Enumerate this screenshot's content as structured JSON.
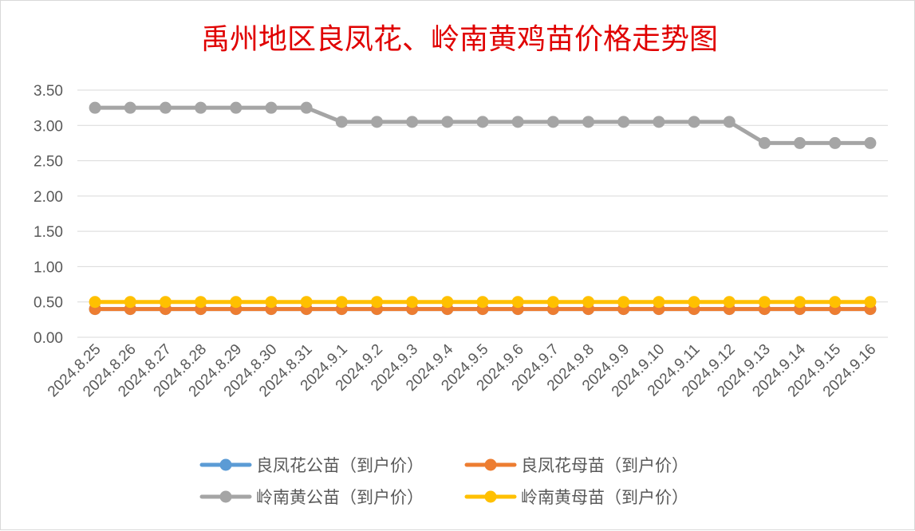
{
  "chart_data": {
    "type": "line",
    "title": "禹州地区良凤花、岭南黄鸡苗价格走势图",
    "xlabel": "",
    "ylabel": "",
    "ylim": [
      0,
      3.5
    ],
    "ytick_step": 0.5,
    "ytick_labels": [
      "0.00",
      "0.50",
      "1.00",
      "1.50",
      "2.00",
      "2.50",
      "3.00",
      "3.50"
    ],
    "grid": true,
    "legend_position": "bottom",
    "categories": [
      "2024.8.25",
      "2024.8.26",
      "2024.8.27",
      "2024.8.28",
      "2024.8.29",
      "2024.8.30",
      "2024.8.31",
      "2024.9.1",
      "2024.9.2",
      "2024.9.3",
      "2024.9.4",
      "2024.9.5",
      "2024.9.6",
      "2024.9.7",
      "2024.9.8",
      "2024.9.9",
      "2024.9.10",
      "2024.9.11",
      "2024.9.12",
      "2024.9.13",
      "2024.9.14",
      "2024.9.15",
      "2024.9.16"
    ],
    "series": [
      {
        "name": "良凤花公苗（到户价）",
        "color": "#5B9BD5",
        "values": [
          0.4,
          0.4,
          0.4,
          0.4,
          0.4,
          0.4,
          0.4,
          0.4,
          0.4,
          0.4,
          0.4,
          0.4,
          0.4,
          0.4,
          0.4,
          0.4,
          0.4,
          0.4,
          0.4,
          0.4,
          0.4,
          0.4,
          0.4
        ]
      },
      {
        "name": "良凤花母苗（到户价）",
        "color": "#ED7D31",
        "values": [
          0.4,
          0.4,
          0.4,
          0.4,
          0.4,
          0.4,
          0.4,
          0.4,
          0.4,
          0.4,
          0.4,
          0.4,
          0.4,
          0.4,
          0.4,
          0.4,
          0.4,
          0.4,
          0.4,
          0.4,
          0.4,
          0.4,
          0.4
        ]
      },
      {
        "name": "岭南黄公苗（到户价）",
        "color": "#A5A5A5",
        "values": [
          3.25,
          3.25,
          3.25,
          3.25,
          3.25,
          3.25,
          3.25,
          3.05,
          3.05,
          3.05,
          3.05,
          3.05,
          3.05,
          3.05,
          3.05,
          3.05,
          3.05,
          3.05,
          3.05,
          2.75,
          2.75,
          2.75,
          2.75
        ]
      },
      {
        "name": "岭南黄母苗（到户价）",
        "color": "#FFC000",
        "values": [
          0.5,
          0.5,
          0.5,
          0.5,
          0.5,
          0.5,
          0.5,
          0.5,
          0.5,
          0.5,
          0.5,
          0.5,
          0.5,
          0.5,
          0.5,
          0.5,
          0.5,
          0.5,
          0.5,
          0.5,
          0.5,
          0.5,
          0.5
        ]
      }
    ],
    "title_color": "#E00000",
    "gridline_color": "#D9D9D9",
    "tick_color": "#595959"
  }
}
